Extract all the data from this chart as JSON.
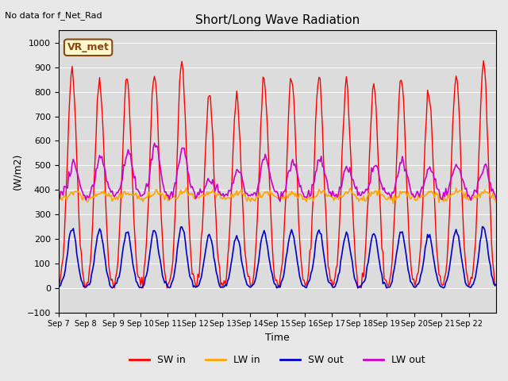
{
  "title": "Short/Long Wave Radiation",
  "xlabel": "Time",
  "ylabel": "(W/m2)",
  "ylim": [
    -100,
    1050
  ],
  "yticks": [
    -100,
    0,
    100,
    200,
    300,
    400,
    500,
    600,
    700,
    800,
    900,
    1000
  ],
  "x_tick_labels": [
    "Sep 7",
    "Sep 8",
    "Sep 9",
    "Sep 10",
    "Sep 11",
    "Sep 12",
    "Sep 13",
    "Sep 14",
    "Sep 15",
    "Sep 16",
    "Sep 17",
    "Sep 18",
    "Sep 19",
    "Sep 20",
    "Sep 21",
    "Sep 22"
  ],
  "annotation_text": "No data for f_Net_Rad",
  "box_label": "VR_met",
  "colors": {
    "SW_in": "#FF0000",
    "LW_in": "#FFA500",
    "SW_out": "#0000CC",
    "LW_out": "#CC00CC"
  },
  "legend_labels": [
    "SW in",
    "LW in",
    "SW out",
    "LW out"
  ],
  "background_color": "#E8E8E8",
  "plot_bg_color": "#DCDCDC",
  "num_days": 16,
  "hours_per_day": 24
}
